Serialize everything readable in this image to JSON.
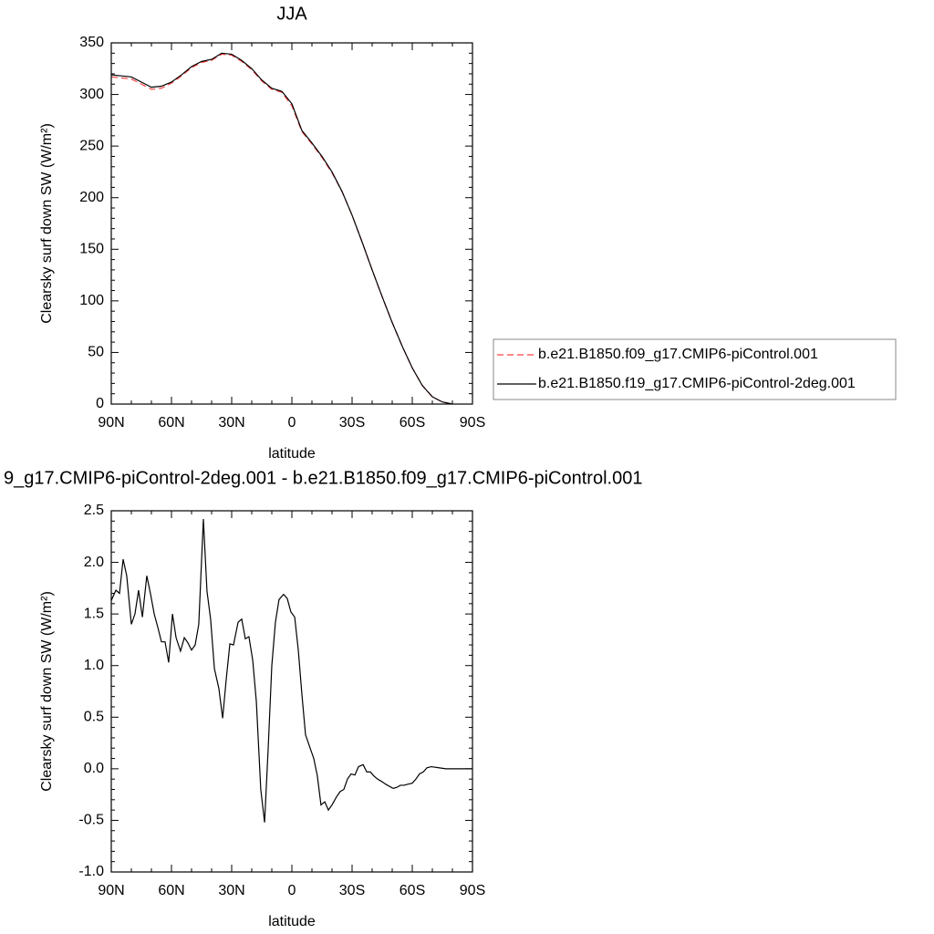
{
  "chart_data": [
    {
      "type": "line",
      "title": "JJA",
      "xlabel": "latitude",
      "ylabel": "Clearsky surf down SW (W/m²)",
      "x": [
        90,
        85,
        80,
        75,
        70,
        65,
        60,
        55,
        50,
        45,
        40,
        35,
        30,
        25,
        20,
        15,
        10,
        5,
        0,
        -5,
        -10,
        -15,
        -20,
        -25,
        -30,
        -35,
        -40,
        -45,
        -50,
        -55,
        -60,
        -65,
        -70,
        -75,
        -80
      ],
      "series": [
        {
          "name": "b.e21.B1850.f09_g17.CMIP6-piControl.001",
          "color": "#ff4040",
          "dashed": true,
          "values": [
            317,
            316,
            315,
            310,
            305,
            306,
            311,
            318,
            326,
            331,
            333,
            339,
            338,
            332,
            324,
            313,
            305,
            302,
            289,
            264,
            252,
            239,
            224,
            206,
            183,
            157,
            130,
            104,
            79,
            56,
            35,
            18,
            7,
            2,
            0
          ]
        },
        {
          "name": "b.e21.B1850.f19_g17.CMIP6-piControl-2deg.001",
          "color": "#000000",
          "dashed": false,
          "values": [
            319,
            318,
            317,
            312,
            307,
            308,
            312,
            319,
            327,
            332,
            334,
            340,
            339,
            333,
            325,
            314,
            306,
            303,
            291,
            265,
            253,
            240,
            225,
            206,
            183,
            157,
            130,
            104,
            79,
            56,
            35,
            18,
            7,
            2,
            0
          ]
        }
      ],
      "xlim": [
        90,
        -90
      ],
      "xticks": [
        {
          "value": 90,
          "label": "90N"
        },
        {
          "value": 60,
          "label": "60N"
        },
        {
          "value": 30,
          "label": "30N"
        },
        0,
        {
          "value": -30,
          "label": "30S"
        },
        {
          "value": -60,
          "label": "60S"
        },
        {
          "value": -90,
          "label": "90S"
        }
      ],
      "ylim": [
        0,
        350
      ],
      "yticks": [
        0,
        50,
        100,
        150,
        200,
        250,
        300,
        350
      ],
      "legend_position": "right"
    },
    {
      "type": "line",
      "title": "9_g17.CMIP6-piControl-2deg.001 - b.e21.B1850.f09_g17.CMIP6-piControl.001",
      "xlabel": "latitude",
      "ylabel": "Clearsky surf down SW (W/m²)",
      "x": [
        90,
        87.7,
        85.9,
        84.1,
        82.3,
        80,
        78.2,
        76.4,
        74.5,
        72.3,
        70.5,
        68.6,
        66.8,
        65,
        63.2,
        61.4,
        59.5,
        57.7,
        55.5,
        53.6,
        51.8,
        50,
        48.2,
        46.4,
        44.1,
        42.3,
        40.5,
        38.6,
        36.4,
        34.5,
        32.7,
        30.9,
        29.1,
        26.8,
        25,
        23.2,
        21.4,
        19.5,
        17.7,
        15.5,
        13.6,
        11.8,
        10,
        8.2,
        6.4,
        4.1,
        2.3,
        0.5,
        -1.4,
        -3.2,
        -5,
        -6.8,
        -9.1,
        -10.9,
        -12.7,
        -14.5,
        -16.4,
        -18.2,
        -20,
        -22.3,
        -24.1,
        -25.9,
        -27.7,
        -29.5,
        -31.4,
        -33.2,
        -35.5,
        -37.3,
        -39.1,
        -40.9,
        -42.7,
        -44.5,
        -46.8,
        -48.6,
        -50.5,
        -52.3,
        -54.1,
        -55.9,
        -57.7,
        -60,
        -61.8,
        -63.6,
        -65.5,
        -67.3,
        -69.5,
        -73.2,
        -76.8,
        -90
      ],
      "series": [
        {
          "name": null,
          "color": "#000000",
          "dashed": false,
          "values": [
            1.63,
            1.73,
            1.7,
            2.03,
            1.87,
            1.4,
            1.5,
            1.73,
            1.47,
            1.87,
            1.7,
            1.5,
            1.37,
            1.23,
            1.23,
            1.03,
            1.5,
            1.27,
            1.14,
            1.27,
            1.22,
            1.15,
            1.2,
            1.4,
            2.42,
            1.72,
            1.45,
            0.97,
            0.78,
            0.49,
            0.87,
            1.21,
            1.2,
            1.42,
            1.45,
            1.26,
            1.28,
            1.05,
            0.65,
            -0.2,
            -0.52,
            0.2,
            1.0,
            1.42,
            1.64,
            1.69,
            1.65,
            1.52,
            1.47,
            1.15,
            0.72,
            0.33,
            0.2,
            0.1,
            -0.07,
            -0.35,
            -0.32,
            -0.4,
            -0.35,
            -0.27,
            -0.22,
            -0.2,
            -0.1,
            -0.05,
            -0.06,
            0.02,
            0.04,
            -0.03,
            -0.03,
            -0.07,
            -0.1,
            -0.12,
            -0.15,
            -0.17,
            -0.19,
            -0.18,
            -0.16,
            -0.16,
            -0.15,
            -0.14,
            -0.1,
            -0.05,
            -0.03,
            0.01,
            0.02,
            0.01,
            0,
            0
          ]
        }
      ],
      "xlim": [
        90,
        -90
      ],
      "xticks": [
        {
          "value": 90,
          "label": "90N"
        },
        {
          "value": 60,
          "label": "60N"
        },
        {
          "value": 30,
          "label": "30N"
        },
        0,
        {
          "value": -30,
          "label": "30S"
        },
        {
          "value": -60,
          "label": "60S"
        },
        {
          "value": -90,
          "label": "90S"
        }
      ],
      "ylim": [
        -1.0,
        2.5
      ],
      "yticks": [
        {
          "value": -1.0,
          "label": "-1.0"
        },
        -0.5,
        {
          "value": 0,
          "label": "0.0"
        },
        0.5,
        {
          "value": 1,
          "label": "1.0"
        },
        1.5,
        {
          "value": 2,
          "label": "2.0"
        },
        2.5
      ]
    }
  ]
}
